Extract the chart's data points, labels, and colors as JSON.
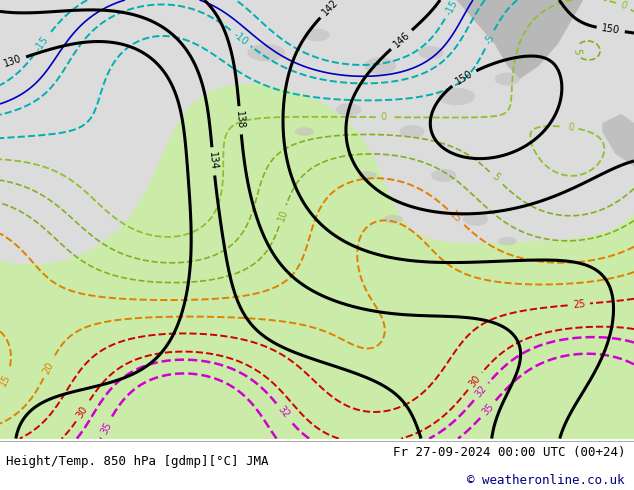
{
  "title_left": "Height/Temp. 850 hPa [gdmp][°C] JMA",
  "title_right": "Fr 27-09-2024 00:00 UTC (00+24)",
  "copyright": "© weatheronline.co.uk",
  "bg_color": "#ffffff",
  "fig_width": 6.34,
  "fig_height": 4.9,
  "dpi": 100,
  "title_fontsize": 9,
  "copyright_color": "#000080",
  "text_color": "#000000",
  "map_area_color": "#e8e8e8",
  "ocean_color": "#dce8dc",
  "land_color": "#c8c8c8",
  "green_color": "#c8f0a0",
  "black_contour_color": "#000000",
  "cyan_contour_color": "#00b0b0",
  "orange_contour_color": "#e08000",
  "red_contour_color": "#d00000",
  "magenta_contour_color": "#d000d0",
  "lime_contour_color": "#80c000",
  "blue_contour_color": "#0000c0"
}
